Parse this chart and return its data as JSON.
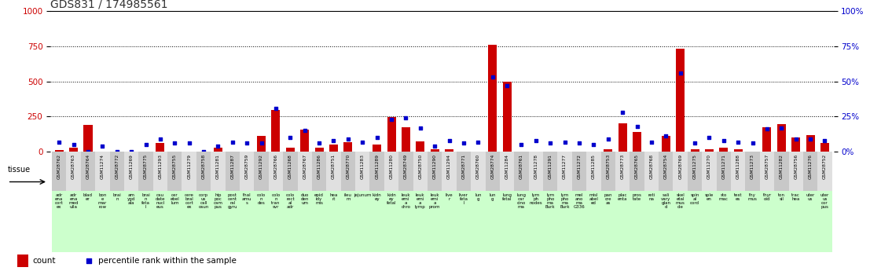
{
  "title": "GDS831 / 174985561",
  "samples": [
    "GSM28762",
    "GSM28763",
    "GSM28764",
    "GSM11274",
    "GSM28772",
    "GSM11269",
    "GSM28775",
    "GSM11293",
    "GSM28755",
    "GSM11279",
    "GSM28758",
    "GSM11281",
    "GSM11287",
    "GSM28759",
    "GSM11292",
    "GSM28766",
    "GSM11268",
    "GSM28767",
    "GSM11286",
    "GSM28751",
    "GSM28770",
    "GSM11283",
    "GSM11289",
    "GSM11280",
    "GSM28749",
    "GSM28750",
    "GSM11290",
    "GSM11294",
    "GSM28771",
    "GSM28760",
    "GSM28774",
    "GSM11284",
    "GSM28761",
    "GSM11278",
    "GSM11291",
    "GSM11277",
    "GSM11272",
    "GSM11285",
    "GSM28753",
    "GSM28773",
    "GSM28765",
    "GSM28768",
    "GSM28754",
    "GSM28769",
    "GSM11275",
    "GSM11270",
    "GSM11271",
    "GSM11288",
    "GSM11273",
    "GSM28757",
    "GSM11282",
    "GSM28756",
    "GSM11276",
    "GSM28752"
  ],
  "tissue_labels": [
    "adr\nena\ncort\nex",
    "adr\nena\nmed\nulla",
    "blad\ner",
    "bon\ne\nmar\nrow",
    "brai\nn",
    "am\nygd\nala",
    "brai\nn\nfeta\nl",
    "cau\ndate\nnucl\neus",
    "cer\nebel\nlum",
    "cere\nbral\ncort\nex",
    "corp\nus\ncall\nosun",
    "hip\npoc\ncam\npus",
    "post\ncent\nral\ngyru",
    "thal\namu\ns",
    "colo\nn\ndes",
    "colo\nn\ntran\nsvr",
    "colo\nrect\nal\nadr",
    "duo\nden\num",
    "epid\nidy\nmis",
    "hea\nrt",
    "ileu\nm",
    "jejunum",
    "kidn\ney",
    "kidn\ney\nfetal",
    "leuk\nemi\na\nchro",
    "leuk\nemi\na\nlymp",
    "leuk\nemi\na\nprom",
    "live\nr",
    "liver\nfeta\nl",
    "lun\ng",
    "lun\ng",
    "lung\nfetal",
    "lung\ncar\ncino\nma",
    "lym\nph\nnodes",
    "lym\npho\nma\nBurk",
    "lym\npho\nma\nBurk",
    "mel\nano\nma\nG336",
    "misl\nabel\ned",
    "pan\ncre\nas",
    "plac\nenta",
    "pros\ntate",
    "reti\nna",
    "sali\nvary\nglan\nd",
    "skel\netal\nmus\ncle",
    "spin\nal\ncord",
    "sple\nen",
    "sto\nmac",
    "test\nes",
    "thy\nmus",
    "thyr\noid",
    "ton\nsil",
    "trac\nhea",
    "uter\nus",
    "uter\nus\ncor\npus"
  ],
  "counts": [
    10,
    30,
    190,
    0,
    0,
    0,
    0,
    60,
    0,
    0,
    0,
    30,
    0,
    0,
    110,
    295,
    30,
    155,
    30,
    50,
    70,
    0,
    50,
    245,
    175,
    75,
    20,
    20,
    0,
    0,
    760,
    500,
    0,
    0,
    0,
    0,
    0,
    0,
    20,
    200,
    140,
    0,
    110,
    730,
    20,
    20,
    30,
    20,
    0,
    175,
    195,
    100,
    120,
    60
  ],
  "percentile_ranks_pct": [
    7,
    5,
    0,
    4,
    0,
    0,
    5,
    9,
    6,
    6,
    0,
    4,
    7,
    6,
    6,
    31,
    10,
    15,
    6,
    8,
    9,
    7,
    10,
    23,
    24,
    17,
    4,
    8,
    6,
    7,
    53,
    47,
    5,
    8,
    6,
    7,
    6,
    5,
    9,
    28,
    18,
    7,
    11,
    56,
    6,
    10,
    8,
    7,
    6,
    16,
    17,
    9,
    9,
    8
  ],
  "ylim_left": [
    0,
    1000
  ],
  "ylim_right": [
    0,
    100
  ],
  "yticks_left": [
    0,
    250,
    500,
    750,
    1000
  ],
  "yticks_right": [
    0,
    25,
    50,
    75,
    100
  ],
  "bar_color": "#cc0000",
  "dot_color": "#0000cc",
  "bg_color": "#ffffff",
  "tissue_bg": "#ccffcc",
  "sample_bg_even": "#c8c8c8",
  "sample_bg_odd": "#e0e0e0",
  "title_color": "#333333",
  "legend_count_color": "#cc0000",
  "legend_pct_color": "#0000cc",
  "right_axis_color": "#0000cc",
  "left_axis_color": "#cc0000",
  "grid_color": "#000000"
}
